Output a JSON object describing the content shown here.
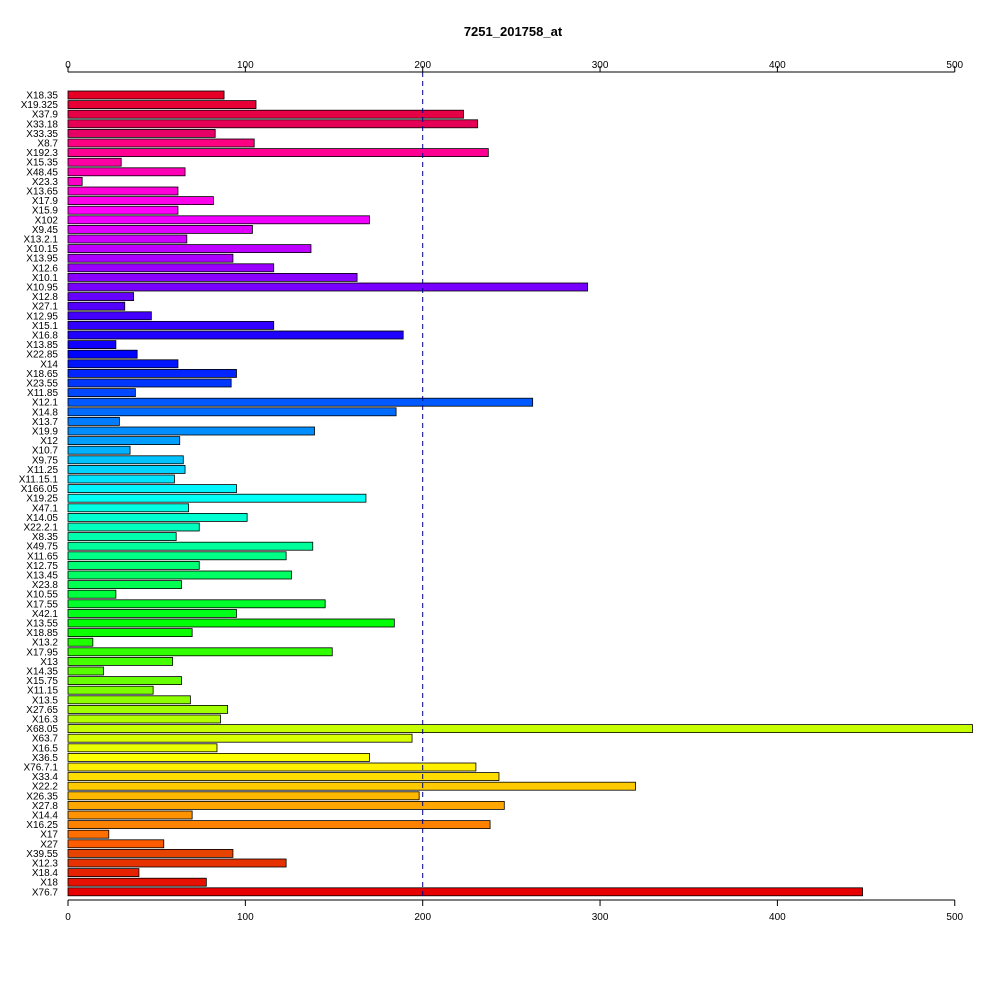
{
  "chart_data": {
    "type": "bar",
    "orientation": "horizontal",
    "title": "7251_201758_at",
    "xlabel": "",
    "ylabel": "",
    "xlim": [
      0,
      510
    ],
    "xticks": [
      0,
      100,
      200,
      300,
      400,
      500
    ],
    "xtick_labels": [
      "0",
      "100",
      "200",
      "300",
      "400",
      "500"
    ],
    "axes": [
      "top",
      "bottom"
    ],
    "reference_line": {
      "value": 200,
      "style": "dashed",
      "color": "#00008B"
    },
    "bar_colors": "rainbow gradient (red → magenta → blue → cyan → green → yellow → orange → red)",
    "grid": false,
    "legend": "none",
    "categories": [
      "X18.35",
      "X19.325",
      "X37.9",
      "X33.18",
      "X33.35",
      "X8.7",
      "X192.3",
      "X15.35",
      "X48.45",
      "X23.3",
      "X13.65",
      "X17.9",
      "X15.9",
      "X102",
      "X9.45",
      "X13.2.1",
      "X10.15",
      "X13.95",
      "X12.6",
      "X10.1",
      "X10.95",
      "X12.8",
      "X27.1",
      "X12.95",
      "X15.1",
      "X16.8",
      "X13.85",
      "X22.85",
      "X14",
      "X18.65",
      "X23.55",
      "X11.85",
      "X12.1",
      "X14.8",
      "X13.7",
      "X19.9",
      "X12",
      "X10.7",
      "X9.75",
      "X11.25",
      "X11.15.1",
      "X166.05",
      "X19.25",
      "X47.1",
      "X14.05",
      "X22.2.1",
      "X8.35",
      "X49.75",
      "X11.65",
      "X12.75",
      "X13.45",
      "X23.8",
      "X10.55",
      "X17.55",
      "X42.1",
      "X13.55",
      "X18.85",
      "X13.2",
      "X17.95",
      "X13",
      "X14.35",
      "X15.75",
      "X11.15",
      "X13.5",
      "X27.65",
      "X16.3",
      "X68.05",
      "X63.7",
      "X16.5",
      "X36.5",
      "X76.7.1",
      "X33.4",
      "X22.2",
      "X26.35",
      "X27.8",
      "X14.4",
      "X16.25",
      "X17",
      "X27",
      "X39.55",
      "X12.3",
      "X18.4",
      "X18",
      "X76.7"
    ],
    "values": [
      88,
      106,
      223,
      231,
      83,
      105,
      237,
      30,
      66,
      8,
      62,
      82,
      62,
      170,
      104,
      67,
      137,
      93,
      116,
      163,
      293,
      37,
      32,
      47,
      116,
      189,
      27,
      39,
      62,
      95,
      92,
      38,
      262,
      185,
      29,
      139,
      63,
      35,
      65,
      66,
      60,
      95,
      168,
      68,
      101,
      74,
      61,
      138,
      123,
      74,
      126,
      64,
      27,
      145,
      95,
      184,
      70,
      14,
      149,
      59,
      20,
      64,
      48,
      69,
      90,
      86,
      510,
      194,
      84,
      170,
      230,
      243,
      320,
      198,
      246,
      70,
      238,
      23,
      54,
      93,
      123,
      40,
      78,
      448
    ]
  }
}
